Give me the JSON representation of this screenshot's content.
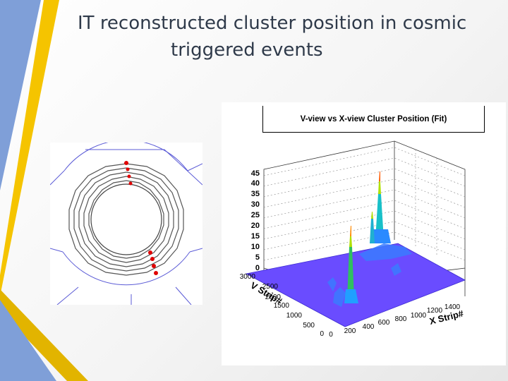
{
  "slide": {
    "title_line1": "IT reconstructed cluster position in cosmic",
    "title_line2": "triggered events"
  },
  "colors": {
    "accent_blue": "#7f9fd8",
    "accent_gold": "#f5c400",
    "surface_purple": "#6a4cff"
  },
  "event_display": {
    "icon": "tracker-ring-display",
    "hit_color": "#e00000"
  },
  "chart_data": {
    "type": "heatmap",
    "title": "V-view vs X-view Cluster Position (Fit)",
    "xlabel": "X Strip#",
    "ylabel": "V Strip#",
    "x_ticks": [
      "0",
      "200",
      "400",
      "600",
      "800",
      "1000",
      "1200",
      "1400"
    ],
    "y_ticks": [
      "0",
      "500",
      "1000",
      "1500",
      "2000",
      "2500",
      "3000"
    ],
    "z_ticks": [
      "0",
      "5",
      "10",
      "15",
      "20",
      "25",
      "30",
      "35",
      "40",
      "45"
    ],
    "xlim": [
      0,
      1400
    ],
    "ylim": [
      0,
      3000
    ],
    "zlim": [
      0,
      45
    ],
    "render": "lego / surface 3D",
    "peaks": [
      {
        "x": 420,
        "y": 800,
        "z": 33
      },
      {
        "x": 820,
        "y": 2050,
        "z": 45
      },
      {
        "x": 700,
        "y": 1650,
        "z": 20
      }
    ]
  }
}
